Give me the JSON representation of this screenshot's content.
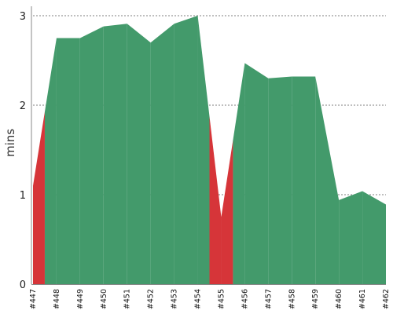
{
  "chart_data": {
    "type": "area",
    "ylabel": "mins",
    "ylim": [
      0,
      3
    ],
    "yticks": [
      0,
      1,
      2,
      3
    ],
    "grid": "horizontal-dashed",
    "categories": [
      "#447",
      "#448",
      "#449",
      "#450",
      "#451",
      "#452",
      "#453",
      "#454",
      "#455",
      "#456",
      "#457",
      "#458",
      "#459",
      "#460",
      "#461",
      "#462"
    ],
    "values": [
      1.1,
      2.75,
      2.75,
      2.88,
      2.91,
      2.7,
      2.91,
      3.0,
      0.75,
      2.47,
      2.3,
      2.32,
      2.32,
      0.94,
      1.04,
      0.89
    ],
    "status": [
      "failed",
      "success",
      "success",
      "success",
      "success",
      "success",
      "success",
      "success",
      "failed",
      "success",
      "success",
      "success",
      "success",
      "success",
      "success",
      "success"
    ],
    "colors": {
      "success": "#439a6b",
      "failed": "#d63539",
      "grid": "#555555",
      "axis": "#888888"
    }
  }
}
